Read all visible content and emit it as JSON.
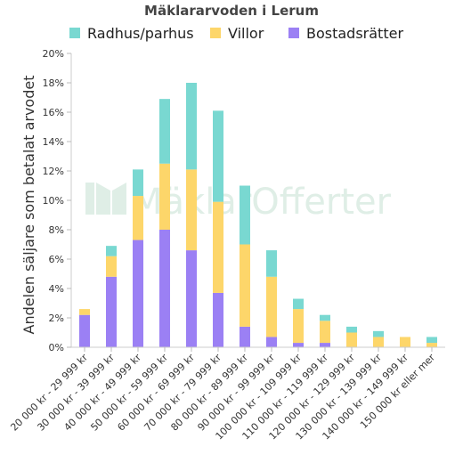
{
  "chart_data": {
    "type": "bar",
    "stacked": true,
    "title": "Mäklararvoden i Lerum",
    "xlabel": "",
    "ylabel": "Andelen säljare som betalat arvodet",
    "ylim": [
      0,
      20
    ],
    "yticks": [
      "0%",
      "2%",
      "4%",
      "6%",
      "8%",
      "10%",
      "12%",
      "14%",
      "16%",
      "18%",
      "20%"
    ],
    "legend_position": "top",
    "categories": [
      "20 000 kr - 29 999 kr",
      "30 000 kr - 39 999 kr",
      "40 000 kr - 49 999 kr",
      "50 000 kr - 59 999 kr",
      "60 000 kr - 69 999 kr",
      "70 000 kr - 79 999 kr",
      "80 000 kr - 89 999 kr",
      "90 000 kr - 99 999 kr",
      "100 000 kr - 109 999 kr",
      "110 000 kr - 119 999 kr",
      "120 000 kr - 129 999 kr",
      "130 000 kr - 139 999 kr",
      "140 000 kr - 149 999 kr",
      "150 000 kr eller mer"
    ],
    "series": [
      {
        "name": "Bostadsrätter",
        "color": "#9b80f4",
        "values": [
          2.2,
          4.8,
          7.3,
          8.0,
          6.6,
          3.7,
          1.4,
          0.7,
          0.3,
          0.3,
          0.0,
          0.0,
          0.0,
          0.0
        ]
      },
      {
        "name": "Villor",
        "color": "#fdd66a",
        "values": [
          0.4,
          1.4,
          3.0,
          4.5,
          5.5,
          6.2,
          5.6,
          4.1,
          2.3,
          1.5,
          1.0,
          0.7,
          0.7,
          0.3
        ]
      },
      {
        "name": "Radhus/parhus",
        "color": "#79d8d1",
        "values": [
          0.0,
          0.7,
          1.8,
          4.4,
          5.9,
          6.2,
          4.0,
          1.8,
          0.7,
          0.4,
          0.4,
          0.4,
          0.0,
          0.4
        ]
      }
    ],
    "legend_order": [
      "Radhus/parhus",
      "Villor",
      "Bostadsrätter"
    ],
    "grid": false
  },
  "watermark": {
    "text": "MäklarOfferter"
  }
}
